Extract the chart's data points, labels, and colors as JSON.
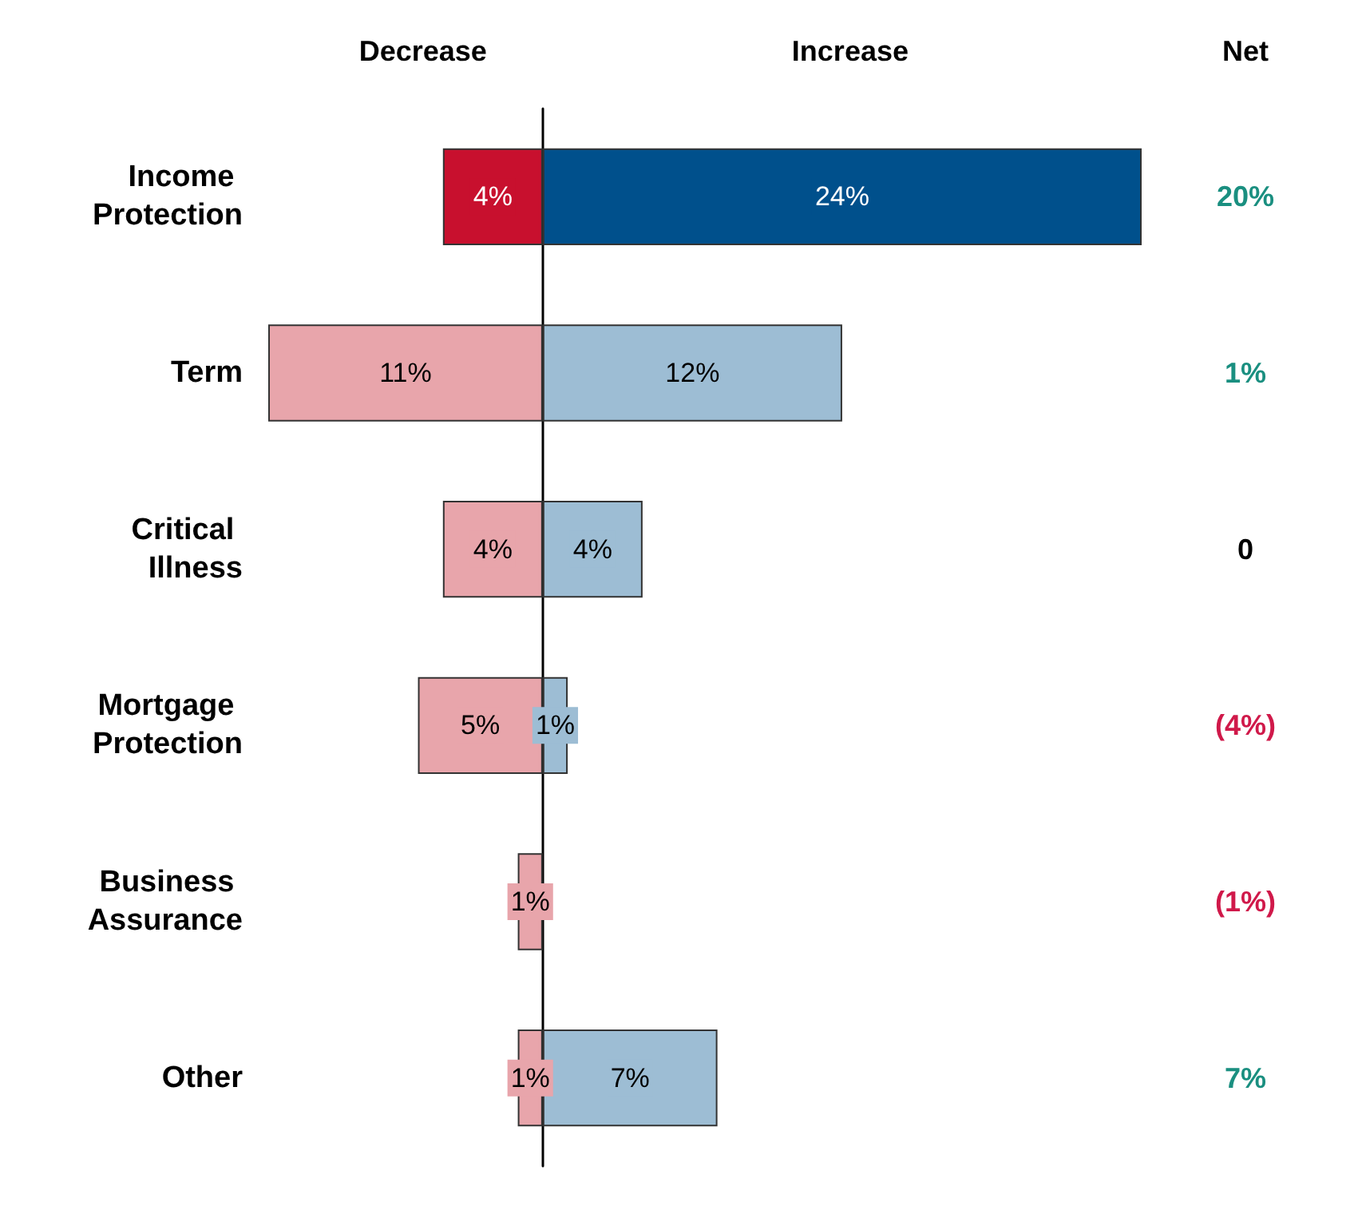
{
  "chart_data": [
    {
      "type": "bar",
      "orientation": "horizontal",
      "title": "Decrease",
      "tick_labels": "y",
      "xlim": [
        11,
        0
      ],
      "categories": [
        "Income Protection",
        "Term",
        "Critical Illness",
        "Mortgage Protection",
        "Business Assurance",
        "Other"
      ],
      "colors": [
        "#c8102e",
        "#e8a5ab",
        "#e8a5ab",
        "#e8a5ab",
        "#e8a5ab",
        "#e8a5ab"
      ],
      "values": [
        4,
        11,
        4,
        5,
        1,
        1
      ],
      "value_labels": [
        "4%",
        "11%",
        "4%",
        "5%",
        "1%",
        "1%"
      ]
    },
    {
      "type": "bar",
      "orientation": "horizontal",
      "title": "Increase",
      "tick_labels": false,
      "xlim": [
        0,
        24
      ],
      "categories": [
        "Income Protection",
        "Term",
        "Critical Illness",
        "Mortgage Protection",
        "Business Assurance",
        "Other"
      ],
      "colors": [
        "#00508c",
        "#9dbdd4",
        "#9dbdd4",
        "#9dbdd4",
        "#9dbdd4",
        "#9dbdd4"
      ],
      "values": [
        24,
        12,
        4,
        1,
        null,
        7
      ],
      "value_labels": [
        "24%",
        "12%",
        "4%",
        "1%",
        null,
        "7%"
      ]
    },
    {
      "type": "other",
      "title": "Net",
      "annotations": [
        "20%",
        "1%",
        "0",
        "(4%)",
        "(1%)",
        "7%"
      ]
    }
  ]
}
